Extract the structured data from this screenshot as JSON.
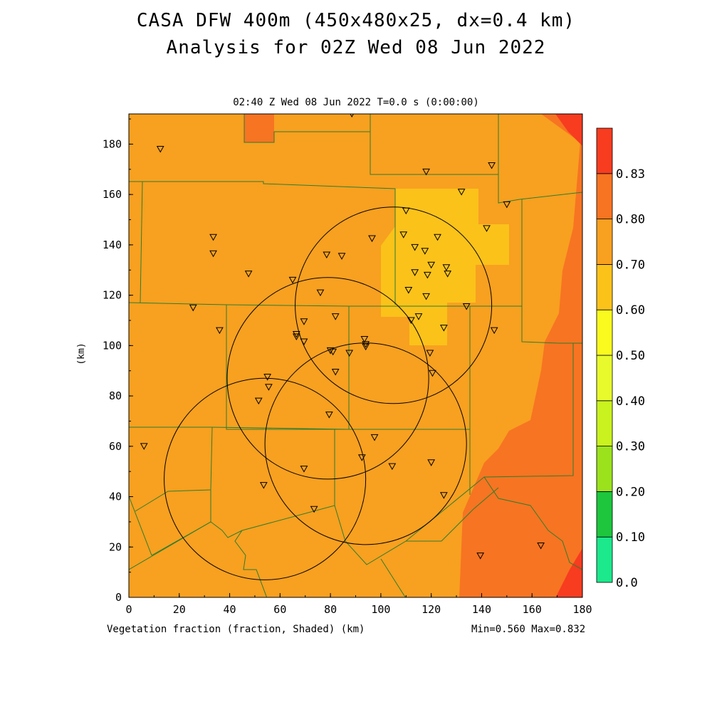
{
  "title": {
    "line1": "CASA DFW 400m (450x480x25, dx=0.4 km)",
    "line2": "Analysis for 02Z Wed 08 Jun 2022"
  },
  "subtitle": "02:40 Z Wed 08 Jun 2022   T=0.0 s (0:00:00)",
  "footer": {
    "left": "Vegetation fraction (fraction, Shaded)  (km)",
    "right": "Min=0.560 Max=0.832"
  },
  "axes": {
    "x_label": "(km)",
    "y_label": "(km)",
    "x_ticks": [
      "0",
      "20",
      "40",
      "60",
      "80",
      "100",
      "120",
      "140",
      "160",
      "180"
    ],
    "y_ticks": [
      "0",
      "20",
      "40",
      "60",
      "80",
      "100",
      "120",
      "140",
      "160",
      "180"
    ],
    "x_range": [
      0,
      180
    ],
    "y_range": [
      0,
      192
    ]
  },
  "colorbar": {
    "labels": [
      "0.0",
      "0.10",
      "0.20",
      "0.30",
      "0.40",
      "0.50",
      "0.60",
      "0.70",
      "0.80",
      "0.83"
    ],
    "colors": [
      "#1ce88c",
      "#1dc63c",
      "#9be21c",
      "#c9f21e",
      "#e8fa2c",
      "#fafa1e",
      "#fbc21a",
      "#f8a020",
      "#f77422",
      "#f73c20"
    ]
  },
  "fill_colors": {
    "base": "#f8a020",
    "light": "#fbc21a",
    "dark": "#f77422",
    "max": "#f73c20",
    "lines": "#2e7d2e"
  },
  "stations": [
    [
      12.5,
      178
    ],
    [
      88.5,
      192
    ],
    [
      118,
      169
    ],
    [
      144,
      171.5
    ],
    [
      132,
      161
    ],
    [
      150,
      156
    ],
    [
      110,
      153.5
    ],
    [
      33.5,
      143
    ],
    [
      33.5,
      136.5
    ],
    [
      47.5,
      128.5
    ],
    [
      78.5,
      136
    ],
    [
      84.5,
      135.5
    ],
    [
      96.5,
      142.5
    ],
    [
      109,
      144
    ],
    [
      113.5,
      139
    ],
    [
      117.5,
      137.5
    ],
    [
      122.5,
      143
    ],
    [
      142,
      146.5
    ],
    [
      120,
      132
    ],
    [
      113.5,
      129
    ],
    [
      118.5,
      128
    ],
    [
      126,
      131
    ],
    [
      126.5,
      128.5
    ],
    [
      65,
      126
    ],
    [
      76,
      121
    ],
    [
      111,
      122
    ],
    [
      118,
      119.5
    ],
    [
      134,
      115.5
    ],
    [
      25.5,
      115
    ],
    [
      36,
      106
    ],
    [
      82,
      111.5
    ],
    [
      69.5,
      109.5
    ],
    [
      66.5,
      104.5
    ],
    [
      66.5,
      103.5
    ],
    [
      69.5,
      101.5
    ],
    [
      93.5,
      102.5
    ],
    [
      94,
      100.5
    ],
    [
      94,
      99.5
    ],
    [
      115,
      111.5
    ],
    [
      112,
      110
    ],
    [
      125,
      107
    ],
    [
      145,
      106
    ],
    [
      80,
      98
    ],
    [
      81,
      97.5
    ],
    [
      87.5,
      97
    ],
    [
      82,
      89.5
    ],
    [
      119.5,
      97
    ],
    [
      120.5,
      89
    ],
    [
      55,
      87.5
    ],
    [
      55.5,
      83.5
    ],
    [
      51.5,
      78
    ],
    [
      79.5,
      72.5
    ],
    [
      97.5,
      63.5
    ],
    [
      6,
      60
    ],
    [
      92.5,
      55.5
    ],
    [
      104.5,
      52
    ],
    [
      69.5,
      51
    ],
    [
      120,
      53.5
    ],
    [
      53.5,
      44.5
    ],
    [
      125,
      40.5
    ],
    [
      73.5,
      35
    ],
    [
      139.5,
      16.5
    ],
    [
      163.5,
      20.5
    ]
  ],
  "range_rings": [
    {
      "cx": 105,
      "cy": 116,
      "r": 39
    },
    {
      "cx": 79,
      "cy": 87,
      "r": 40
    },
    {
      "cx": 94,
      "cy": 61,
      "r": 40
    },
    {
      "cx": 54,
      "cy": 47,
      "r": 40
    }
  ]
}
